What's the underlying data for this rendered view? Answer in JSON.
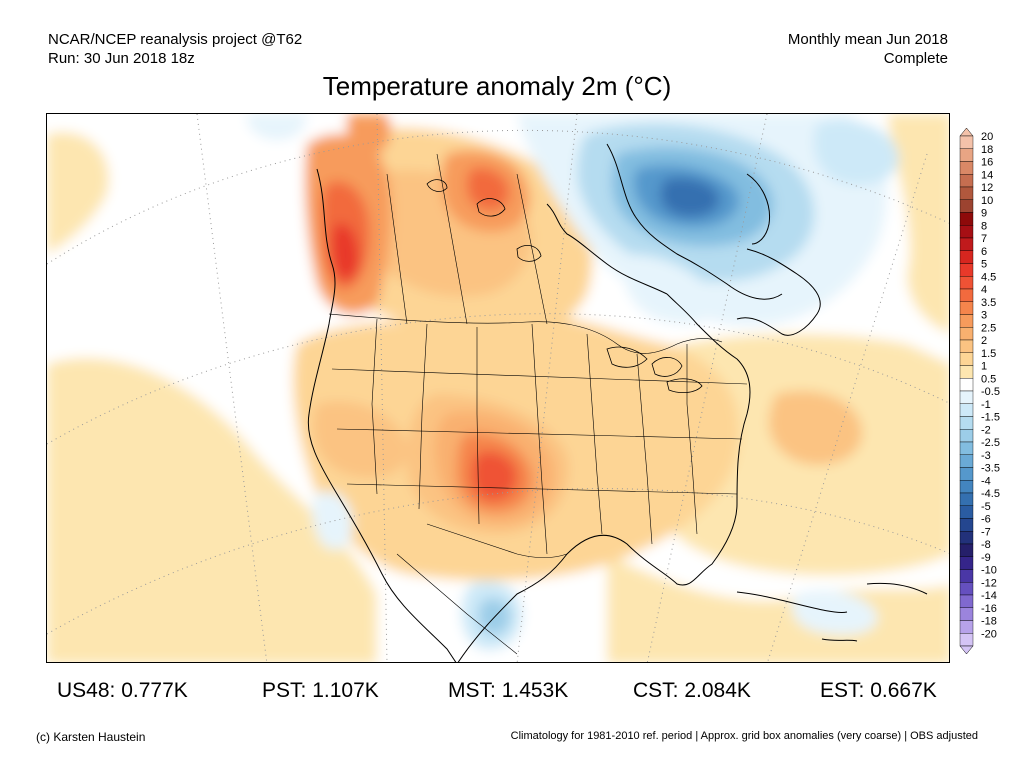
{
  "header": {
    "line1": "NCAR/NCEP reanalysis project @T62",
    "line2": "Run: 30 Jun 2018 18z",
    "right1": "Monthly mean Jun 2018",
    "right2": "Complete"
  },
  "title": "Temperature anomaly 2m (°C)",
  "legend": {
    "labels": [
      "20",
      "18",
      "16",
      "14",
      "12",
      "10",
      "9",
      "8",
      "7",
      "6",
      "5",
      "4.5",
      "4",
      "3.5",
      "3",
      "2.5",
      "2",
      "1.5",
      "1",
      "0.5",
      "-0.5",
      "-1",
      "-1.5",
      "-2",
      "-2.5",
      "-3",
      "-3.5",
      "-4",
      "-4.5",
      "-5",
      "-6",
      "-7",
      "-8",
      "-9",
      "-10",
      "-12",
      "-14",
      "-16",
      "-18",
      "-20"
    ],
    "colors": [
      "#f4c2aa",
      "#e8a584",
      "#d98866",
      "#c66e50",
      "#b1583d",
      "#9c4330",
      "#8e0a0a",
      "#a60f14",
      "#c01a1c",
      "#d7261f",
      "#e8392a",
      "#ef5235",
      "#f26a3e",
      "#f5854c",
      "#f79b5c",
      "#f9b06f",
      "#fbc382",
      "#fdd595",
      "#fde6b0",
      "#ffffff",
      "#e6f4fc",
      "#cde9f8",
      "#b5dcf0",
      "#9ccde8",
      "#82bde0",
      "#6aaad6",
      "#5598cc",
      "#4385bf",
      "#3470b0",
      "#2a5ca2",
      "#24468f",
      "#22317a",
      "#251f6a",
      "#35258a",
      "#4a37a6",
      "#6550bf",
      "#8069cf",
      "#9b84dd",
      "#b7a2ea",
      "#d4c4f5"
    ]
  },
  "stats": [
    {
      "label": "US48:",
      "value": "0.777K"
    },
    {
      "label": "PST:",
      "value": "1.107K"
    },
    {
      "label": "MST:",
      "value": "1.453K"
    },
    {
      "label": "CST:",
      "value": "2.084K"
    },
    {
      "label": "EST:",
      "value": "0.667K"
    }
  ],
  "footer": {
    "credit": "(c) Karsten Haustein",
    "note": "Climatology for 1981-2010 ref. period | Approx. grid box anomalies (very coarse) | OBS adjusted"
  }
}
